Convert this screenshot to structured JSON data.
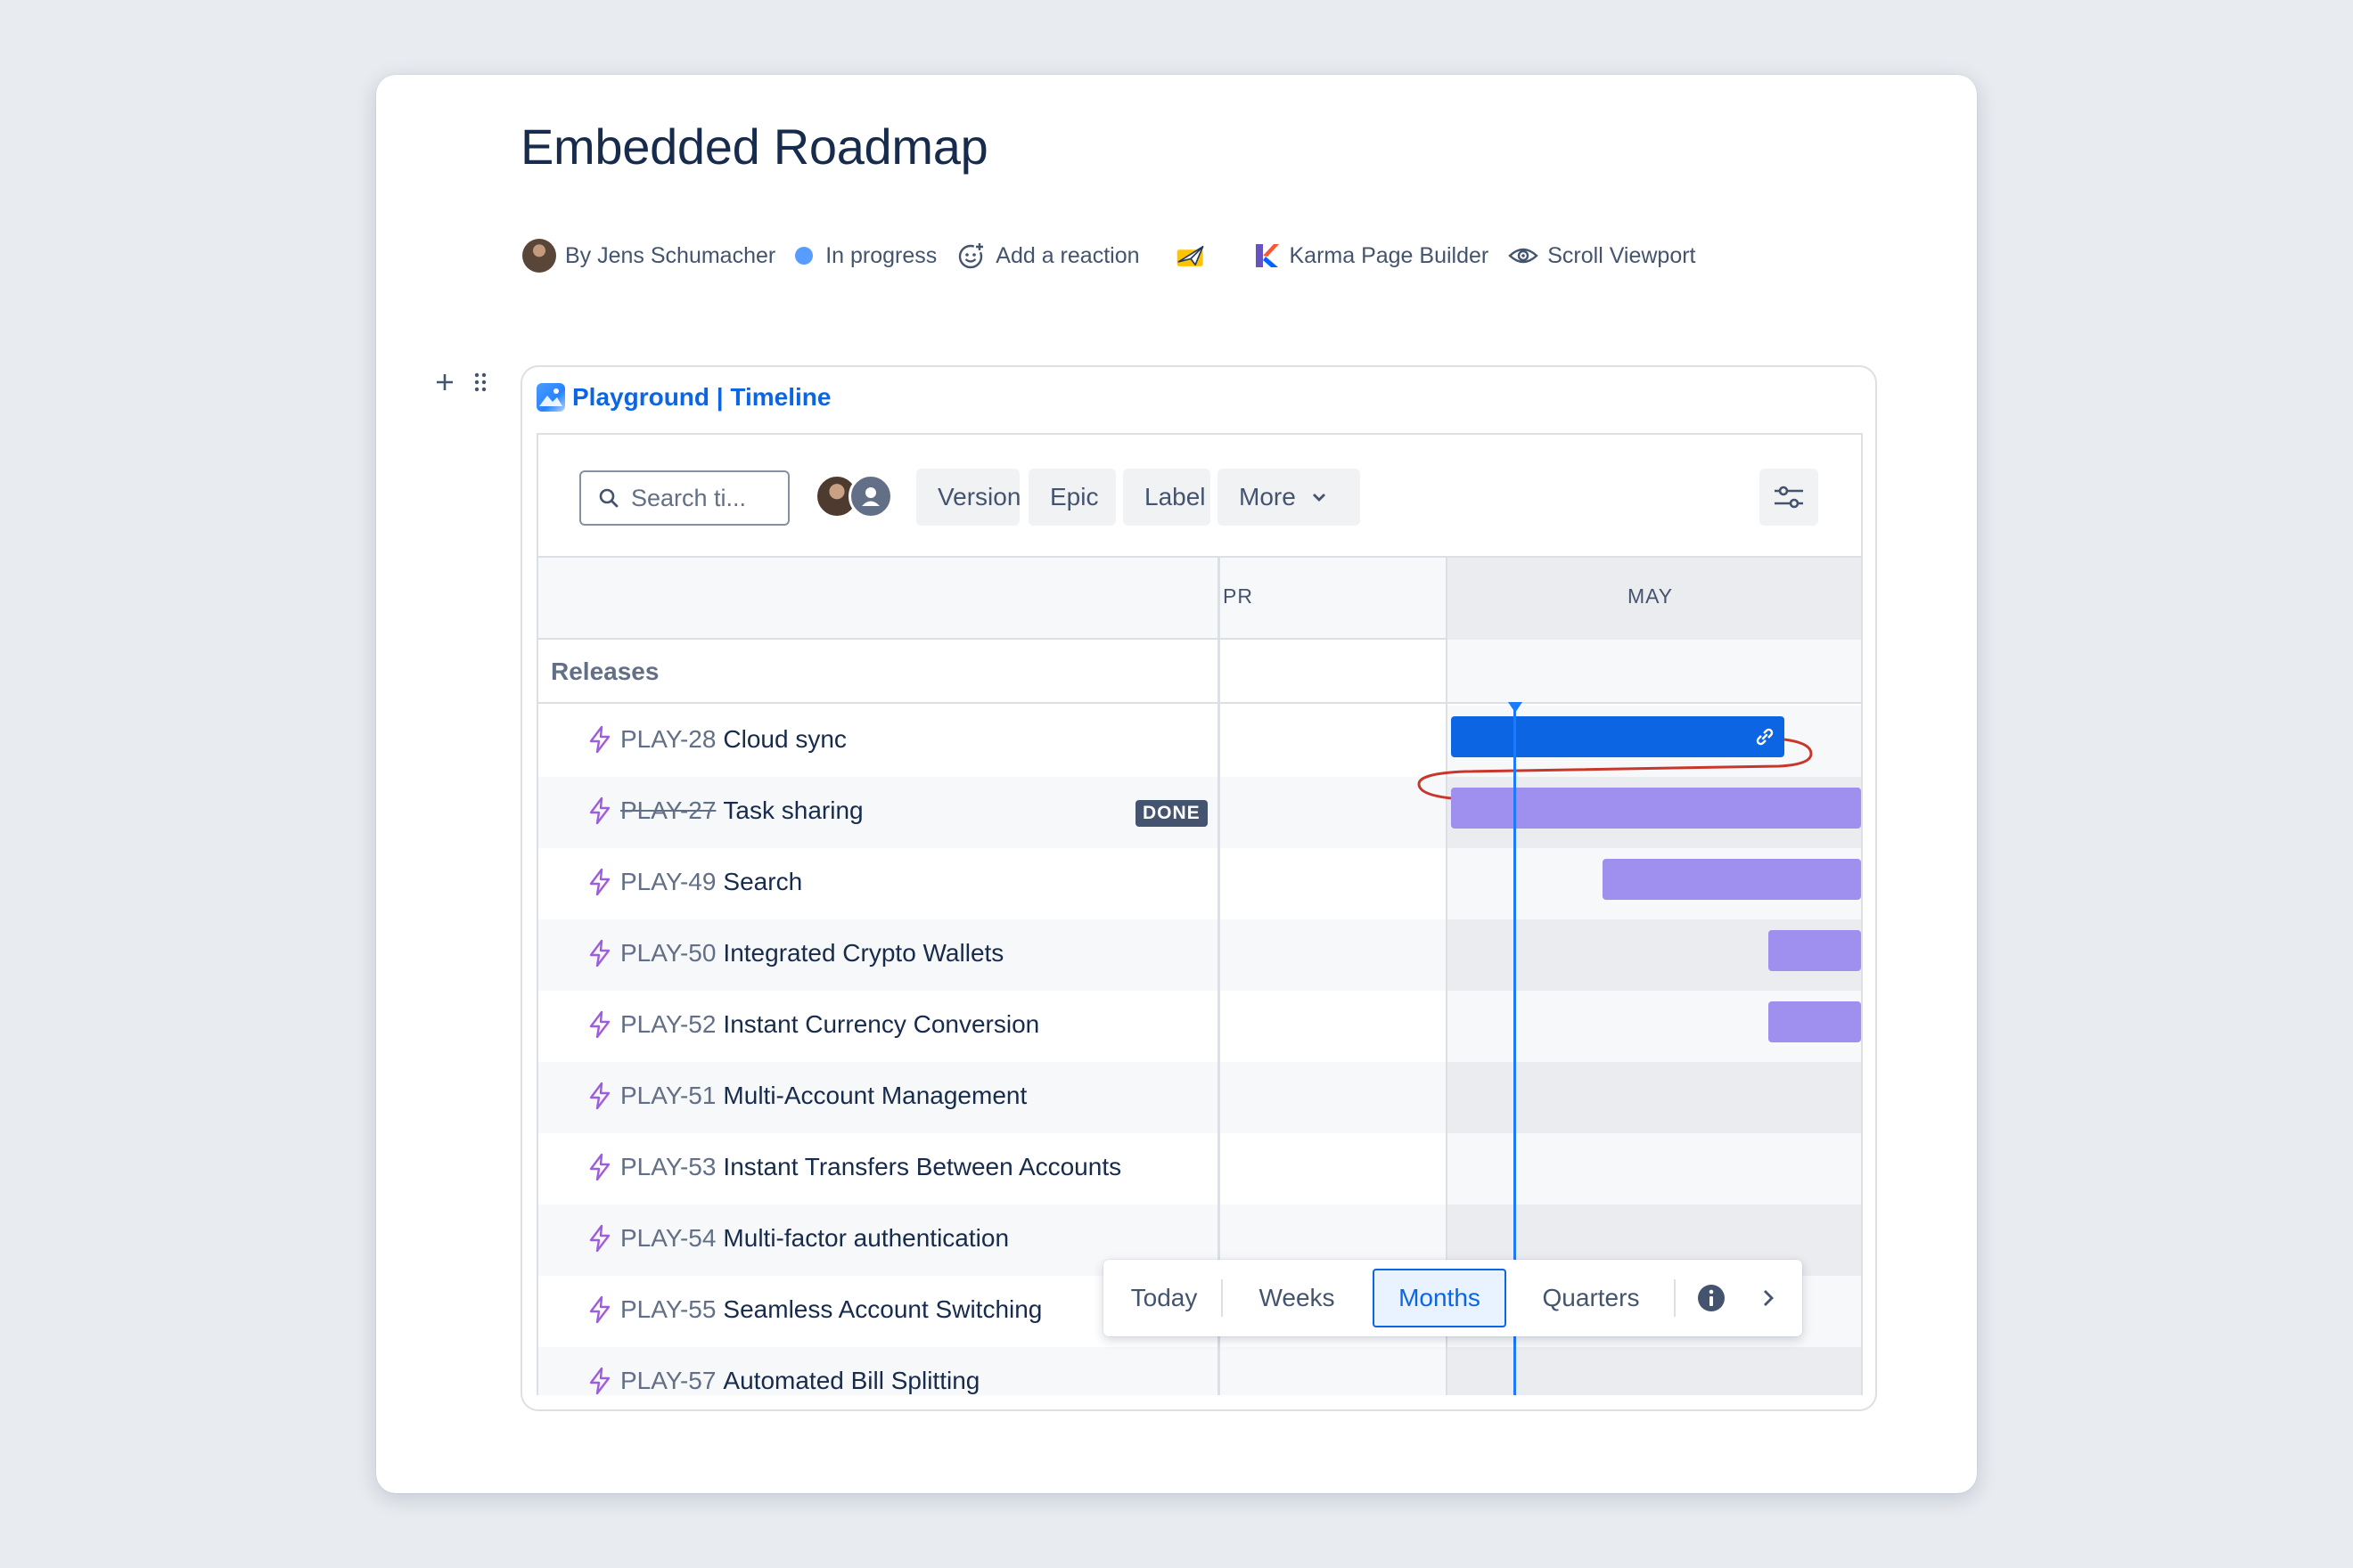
{
  "page": {
    "title": "Embedded Roadmap",
    "byline": {
      "author": "By Jens Schumacher",
      "status": "In progress",
      "reaction": "Add a reaction",
      "app1": "Karma Page Builder",
      "app2": "Scroll Viewport"
    }
  },
  "macro": {
    "title": "Playground | Timeline"
  },
  "toolbar": {
    "search_placeholder": "Search ti...",
    "filters": [
      "Version",
      "Epic",
      "Label",
      "More"
    ]
  },
  "timeline": {
    "months": [
      "PR",
      "MAY"
    ],
    "releases_label": "Releases",
    "rows": [
      {
        "key": "PLAY-28",
        "summary": "Cloud sync",
        "done": false,
        "badge": ""
      },
      {
        "key": "PLAY-27",
        "summary": "Task sharing",
        "done": true,
        "badge": "DONE"
      },
      {
        "key": "PLAY-49",
        "summary": "Search",
        "done": false,
        "badge": ""
      },
      {
        "key": "PLAY-50",
        "summary": "Integrated Crypto Wallets",
        "done": false,
        "badge": ""
      },
      {
        "key": "PLAY-52",
        "summary": "Instant Currency Conversion",
        "done": false,
        "badge": ""
      },
      {
        "key": "PLAY-51",
        "summary": "Multi-Account Management",
        "done": false,
        "badge": ""
      },
      {
        "key": "PLAY-53",
        "summary": "Instant Transfers Between Accounts",
        "done": false,
        "badge": ""
      },
      {
        "key": "PLAY-54",
        "summary": "Multi-factor authentication",
        "done": false,
        "badge": ""
      },
      {
        "key": "PLAY-55",
        "summary": "Seamless Account Switching",
        "done": false,
        "badge": ""
      },
      {
        "key": "PLAY-57",
        "summary": "Automated Bill Splitting",
        "done": false,
        "badge": ""
      }
    ]
  },
  "zoom": {
    "options": [
      "Today",
      "Weeks",
      "Months",
      "Quarters"
    ],
    "selected": "Months"
  },
  "colors": {
    "brand_blue": "#0c66e4",
    "bar_purple": "#9f8fef",
    "today_line": "#1d7afc",
    "status_dot": "#579dff",
    "epic_icon": "#9f5ce0",
    "dependency_red": "#c9372c"
  }
}
